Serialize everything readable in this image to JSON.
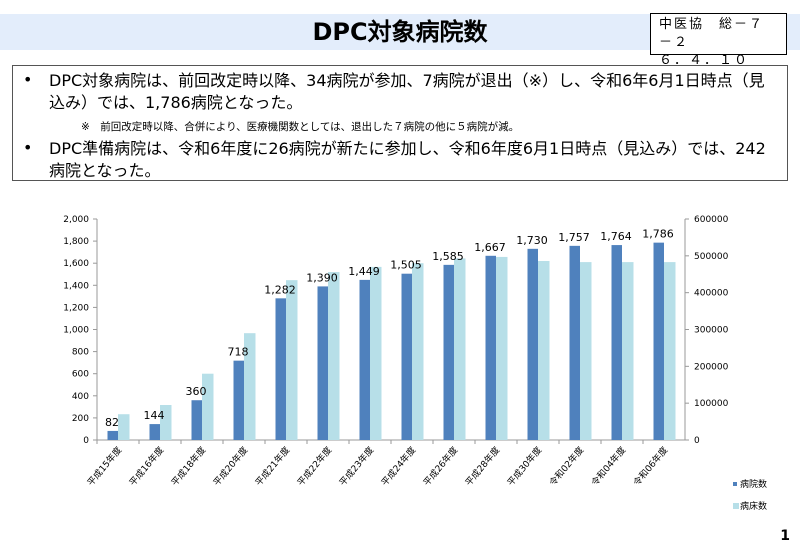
{
  "header": {
    "title": "DPC対象病院数",
    "ref_line1": "中医協　総－７－２",
    "ref_line2": "６．４．１０"
  },
  "bullets": [
    {
      "mark": "•",
      "text": "DPC対象病院は、前回改定時以降、34病院が参加、7病院が退出（※）し、令和6年6月1日時点（見込み）では、1,786病院となった。"
    },
    {
      "mark": "•",
      "text": "DPC準備病院は、令和6年度に26病院が新たに参加し、令和6年度6月1日時点（見込み）では、242病院となった。"
    }
  ],
  "note": "※　前回改定時以降、合併により、医療機関数としては、退出した７病院の他に５病院が減。",
  "page_number": "1",
  "chart_data": {
    "type": "bar",
    "categories": [
      "平成15年度",
      "平成16年度",
      "平成18年度",
      "平成20年度",
      "平成21年度",
      "平成22年度",
      "平成23年度",
      "平成24年度",
      "平成26年度",
      "平成28年度",
      "平成30年度",
      "令和02年度",
      "令和04年度",
      "令和06年度"
    ],
    "series": [
      {
        "name": "病院数",
        "axis": "left",
        "color": "#4f81bd",
        "values": [
          82,
          144,
          360,
          718,
          1282,
          1390,
          1449,
          1505,
          1585,
          1667,
          1730,
          1757,
          1764,
          1786
        ],
        "labels": [
          "82",
          "144",
          "360",
          "718",
          "1,282",
          "1,390",
          "1,449",
          "1,505",
          "1,585",
          "1,667",
          "1,730",
          "1,757",
          "1,764",
          "1,786"
        ]
      },
      {
        "name": "病床数",
        "axis": "right",
        "color": "#b7dfe8",
        "values": [
          70000,
          95000,
          180000,
          290000,
          434000,
          456000,
          470000,
          480000,
          493000,
          497000,
          486000,
          483000,
          483000,
          483000
        ]
      }
    ],
    "ylim": [
      0,
      2000
    ],
    "yticks": [
      "0",
      "200",
      "400",
      "600",
      "800",
      "1,000",
      "1,200",
      "1,400",
      "1,600",
      "1,800",
      "2,000"
    ],
    "y2lim": [
      0,
      600000
    ],
    "y2ticks": [
      "0",
      "100000",
      "200000",
      "300000",
      "400000",
      "500000",
      "600000"
    ],
    "legend": "right-bottom",
    "grid": false
  }
}
